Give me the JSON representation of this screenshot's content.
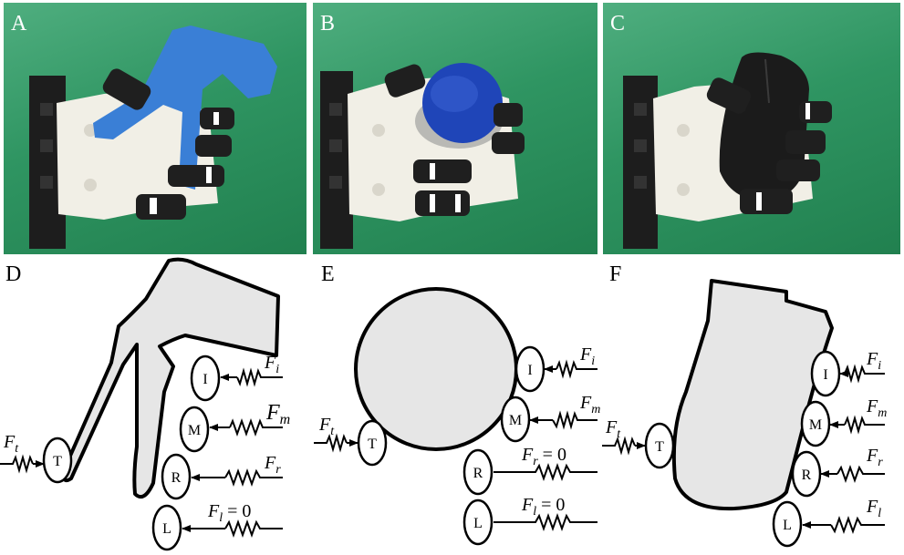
{
  "photos": [
    {
      "letter": "A",
      "object_color": "#3a7fd6"
    },
    {
      "letter": "B",
      "object_color": "#1f45b8"
    },
    {
      "letter": "C",
      "object_color": "#1b1b1b"
    }
  ],
  "sketches": [
    {
      "letter": "D",
      "fingers": {
        "thumb": "T",
        "index": "I",
        "middle": "M",
        "ring": "R",
        "little": "L"
      },
      "forces": {
        "thumb": {
          "sym": "F",
          "sub": "t"
        },
        "index": {
          "sym": "F",
          "sub": "i"
        },
        "middle": {
          "sym": "F",
          "sub": "m"
        },
        "ring": {
          "sym": "F",
          "sub": "r"
        },
        "little": {
          "sym": "F",
          "sub": "l",
          "suffix": " = 0"
        }
      }
    },
    {
      "letter": "E",
      "fingers": {
        "thumb": "T",
        "index": "I",
        "middle": "M",
        "ring": "R",
        "little": "L"
      },
      "forces": {
        "thumb": {
          "sym": "F",
          "sub": "t"
        },
        "index": {
          "sym": "F",
          "sub": "i"
        },
        "middle": {
          "sym": "F",
          "sub": "m"
        },
        "ring": {
          "sym": "F",
          "sub": "r",
          "suffix": " = 0"
        },
        "little": {
          "sym": "F",
          "sub": "l",
          "suffix": " = 0"
        }
      }
    },
    {
      "letter": "F",
      "fingers": {
        "thumb": "T",
        "index": "I",
        "middle": "M",
        "ring": "R",
        "little": "L"
      },
      "forces": {
        "thumb": {
          "sym": "F",
          "sub": "t"
        },
        "index": {
          "sym": "F",
          "sub": "i"
        },
        "middle": {
          "sym": "F",
          "sub": "m"
        },
        "ring": {
          "sym": "F",
          "sub": "r"
        },
        "little": {
          "sym": "F",
          "sub": "l"
        }
      }
    }
  ],
  "colors": {
    "object_fill": "#e6e6e6",
    "stroke": "#000000"
  }
}
